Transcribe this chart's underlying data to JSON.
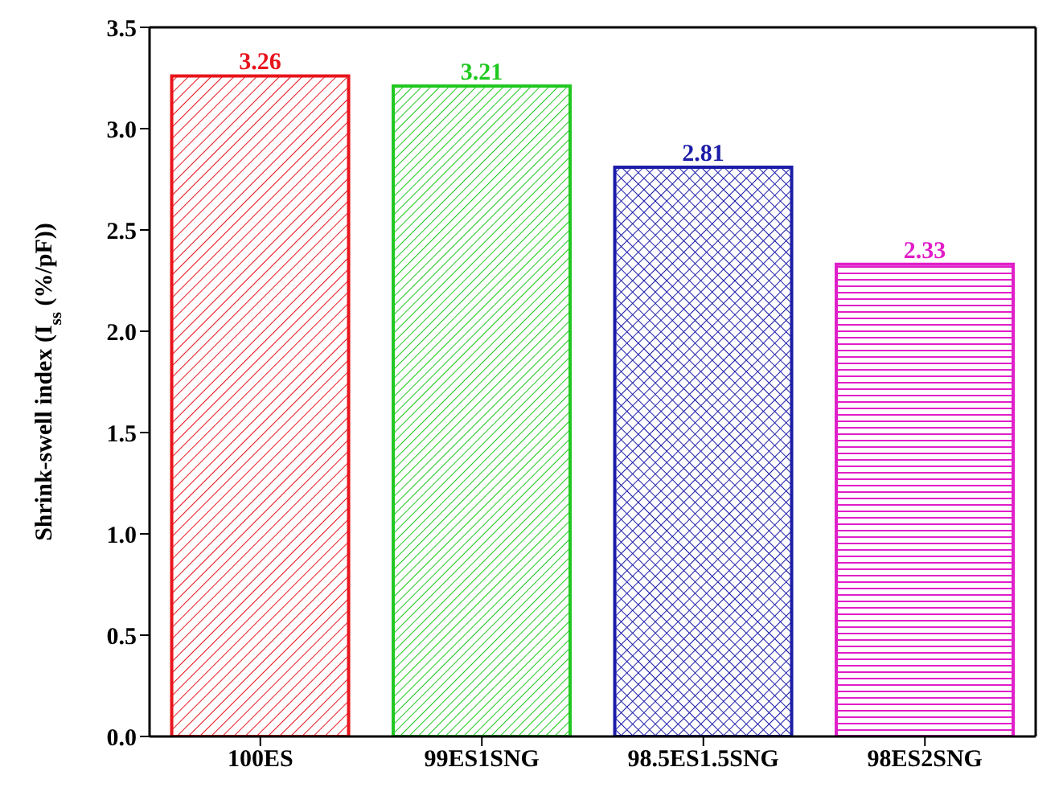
{
  "chart_data": {
    "type": "bar",
    "ylabel": "Shrink-swell index (I$_{ss}$ (%/pF))",
    "categories": [
      "100ES",
      "99ES1SNG",
      "98.5ES1.5SNG",
      "98ES2SNG"
    ],
    "values": [
      3.26,
      3.21,
      2.81,
      2.33
    ],
    "colors": [
      "#e8141c",
      "#1fc81f",
      "#1c1ca8",
      "#e01ec8"
    ],
    "ylim": [
      0,
      3.5
    ],
    "yticks": [
      {
        "value": 0,
        "label": "0.0"
      },
      {
        "value": 0.5,
        "label": "0.5"
      },
      {
        "value": 1,
        "label": "1.0"
      },
      {
        "value": 1.5,
        "label": "1.5"
      },
      {
        "value": 2,
        "label": "2.0"
      },
      {
        "value": 2.5,
        "label": "2.5"
      },
      {
        "value": 3,
        "label": "3.0"
      },
      {
        "value": 3.5,
        "label": "3.5"
      }
    ],
    "data_labels": true,
    "grid": false
  }
}
